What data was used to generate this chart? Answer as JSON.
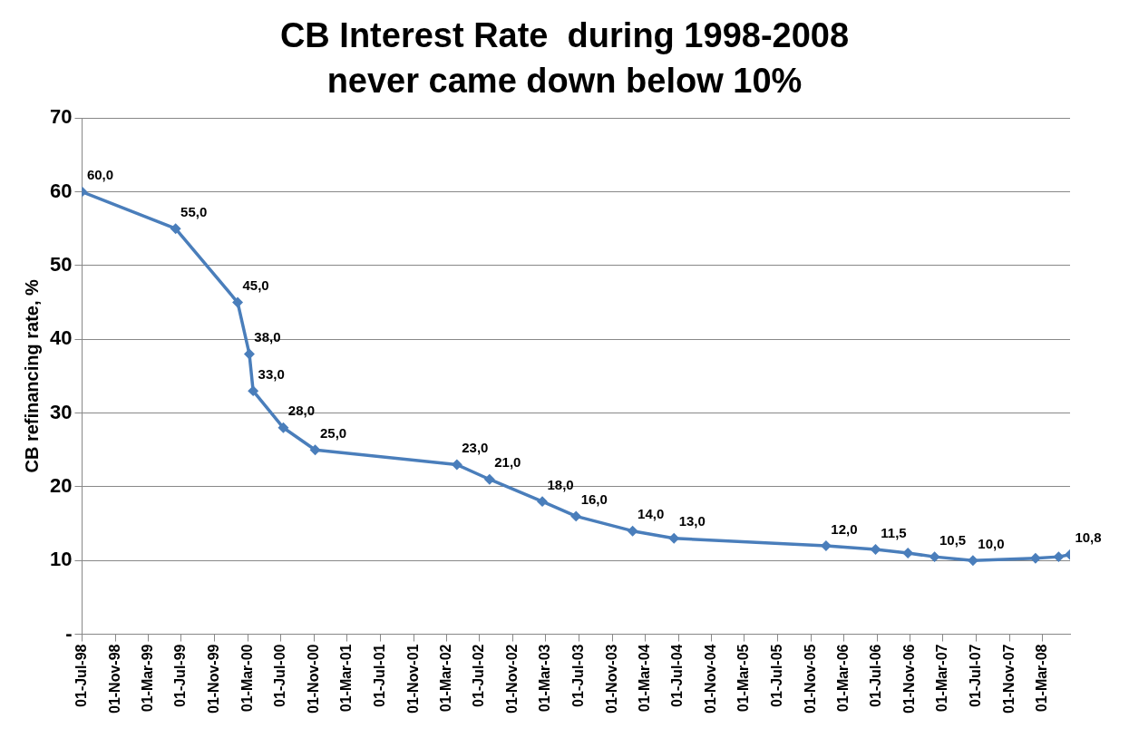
{
  "chart_data": {
    "type": "line",
    "title": "CB Interest Rate  during 1998-2008\nnever came down below 10%",
    "ylabel": "CB refinancing rate, %",
    "x": [
      "1998-07-01",
      "1999-06-10",
      "2000-01-24",
      "2000-03-07",
      "2000-03-21",
      "2000-07-10",
      "2000-11-04",
      "2002-04-09",
      "2002-08-07",
      "2003-02-17",
      "2003-06-21",
      "2004-01-15",
      "2004-06-15",
      "2005-12-26",
      "2006-06-26",
      "2006-10-23",
      "2007-01-29",
      "2007-06-19",
      "2008-02-04",
      "2008-04-29",
      "2008-06-10"
    ],
    "series": [
      {
        "color": "#4a7ebb",
        "values": [
          60,
          55,
          45,
          38,
          33,
          28,
          25,
          23,
          21,
          18,
          16,
          14,
          13,
          12,
          11.5,
          11,
          10.5,
          10,
          10.3,
          10.5,
          10.8
        ],
        "value_labels": [
          "60,0",
          "55,0",
          "45,0",
          "38,0",
          "33,0",
          "28,0",
          "25,0",
          "23,0",
          "21,0",
          "18,0",
          "16,0",
          "14,0",
          "13,0",
          "12,0",
          "11,5",
          null,
          "10,5",
          "10,0",
          null,
          null,
          "10,8"
        ]
      }
    ],
    "xlim": [
      "1998-07-01",
      "2008-06-10"
    ],
    "xticks": [
      {
        "value": "1998-07-01",
        "label": "01-Jul-98"
      },
      {
        "value": "1998-11-01",
        "label": "01-Nov-98"
      },
      {
        "value": "1999-03-01",
        "label": "01-Mar-99"
      },
      {
        "value": "1999-07-01",
        "label": "01-Jul-99"
      },
      {
        "value": "1999-11-01",
        "label": "01-Nov-99"
      },
      {
        "value": "2000-03-01",
        "label": "01-Mar-00"
      },
      {
        "value": "2000-07-01",
        "label": "01-Jul-00"
      },
      {
        "value": "2000-11-01",
        "label": "01-Nov-00"
      },
      {
        "value": "2001-03-01",
        "label": "01-Mar-01"
      },
      {
        "value": "2001-07-01",
        "label": "01-Jul-01"
      },
      {
        "value": "2001-11-01",
        "label": "01-Nov-01"
      },
      {
        "value": "2002-03-01",
        "label": "01-Mar-02"
      },
      {
        "value": "2002-07-01",
        "label": "01-Jul-02"
      },
      {
        "value": "2002-11-01",
        "label": "01-Nov-02"
      },
      {
        "value": "2003-03-01",
        "label": "01-Mar-03"
      },
      {
        "value": "2003-07-01",
        "label": "01-Jul-03"
      },
      {
        "value": "2003-11-01",
        "label": "01-Nov-03"
      },
      {
        "value": "2004-03-01",
        "label": "01-Mar-04"
      },
      {
        "value": "2004-07-01",
        "label": "01-Jul-04"
      },
      {
        "value": "2004-11-01",
        "label": "01-Nov-04"
      },
      {
        "value": "2005-03-01",
        "label": "01-Mar-05"
      },
      {
        "value": "2005-07-01",
        "label": "01-Jul-05"
      },
      {
        "value": "2005-11-01",
        "label": "01-Nov-05"
      },
      {
        "value": "2006-03-01",
        "label": "01-Mar-06"
      },
      {
        "value": "2006-07-01",
        "label": "01-Jul-06"
      },
      {
        "value": "2006-11-01",
        "label": "01-Nov-06"
      },
      {
        "value": "2007-03-01",
        "label": "01-Mar-07"
      },
      {
        "value": "2007-07-01",
        "label": "01-Jul-07"
      },
      {
        "value": "2007-11-01",
        "label": "01-Nov-07"
      },
      {
        "value": "2008-03-01",
        "label": "01-Mar-08"
      }
    ],
    "ylim": [
      0,
      70
    ],
    "yticks": [
      {
        "value": 0,
        "label": "-"
      },
      10,
      20,
      30,
      40,
      50,
      60,
      70
    ],
    "grid": "y",
    "marker": "diamond",
    "line_style": "solid",
    "legend": false
  }
}
